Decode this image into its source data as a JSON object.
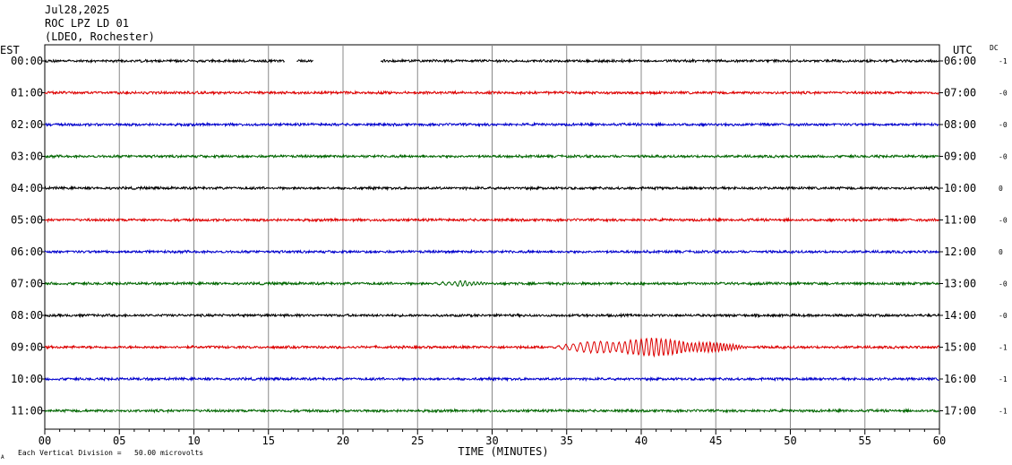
{
  "header": {
    "date": "Jul28,2025",
    "station": "ROC LPZ LD 01",
    "network": "(LDEO, Rochester)"
  },
  "left_axis_label": "EST",
  "right_axis_label": "UTC",
  "dc_label": "DC",
  "footer": {
    "scale_note": "Each Vertical Division =   50.00 microvolts",
    "corner_mark": "A"
  },
  "chart_data": {
    "type": "line",
    "xlabel": "TIME (MINUTES)",
    "xlim": [
      0,
      60
    ],
    "xticks": [
      "00",
      "05",
      "10",
      "15",
      "20",
      "25",
      "30",
      "35",
      "40",
      "45",
      "50",
      "55",
      "60"
    ],
    "colors": [
      "#000000",
      "#dd0000",
      "#0000cc",
      "#006600"
    ],
    "rows": [
      {
        "est": "00:00",
        "utc": "06:00",
        "dc": "-1",
        "color": "#000000",
        "gaps": [
          [
            16.1,
            16.9
          ],
          [
            18.0,
            22.5
          ]
        ],
        "event": null
      },
      {
        "est": "01:00",
        "utc": "07:00",
        "dc": "-0",
        "color": "#dd0000",
        "gaps": [],
        "event": null
      },
      {
        "est": "02:00",
        "utc": "08:00",
        "dc": "-0",
        "color": "#0000cc",
        "gaps": [],
        "event": null
      },
      {
        "est": "03:00",
        "utc": "09:00",
        "dc": "-0",
        "color": "#006600",
        "gaps": [],
        "event": null
      },
      {
        "est": "04:00",
        "utc": "10:00",
        "dc": "0",
        "color": "#000000",
        "gaps": [],
        "event": null
      },
      {
        "est": "05:00",
        "utc": "11:00",
        "dc": "-0",
        "color": "#dd0000",
        "gaps": [],
        "event": null
      },
      {
        "est": "06:00",
        "utc": "12:00",
        "dc": "0",
        "color": "#0000cc",
        "gaps": [],
        "event": null
      },
      {
        "est": "07:00",
        "utc": "13:00",
        "dc": "-0",
        "color": "#006600",
        "gaps": [],
        "event": {
          "start": 25.8,
          "end": 30,
          "amp": 3
        }
      },
      {
        "est": "08:00",
        "utc": "14:00",
        "dc": "-0",
        "color": "#000000",
        "gaps": [],
        "event": null
      },
      {
        "est": "09:00",
        "utc": "15:00",
        "dc": "-1",
        "color": "#dd0000",
        "gaps": [],
        "event": {
          "start": 33.5,
          "end": 47.5,
          "amp": 10
        }
      },
      {
        "est": "10:00",
        "utc": "16:00",
        "dc": "-1",
        "color": "#0000cc",
        "gaps": [],
        "event": null
      },
      {
        "est": "11:00",
        "utc": "17:00",
        "dc": "-1",
        "color": "#006600",
        "gaps": [],
        "event": null
      }
    ]
  }
}
